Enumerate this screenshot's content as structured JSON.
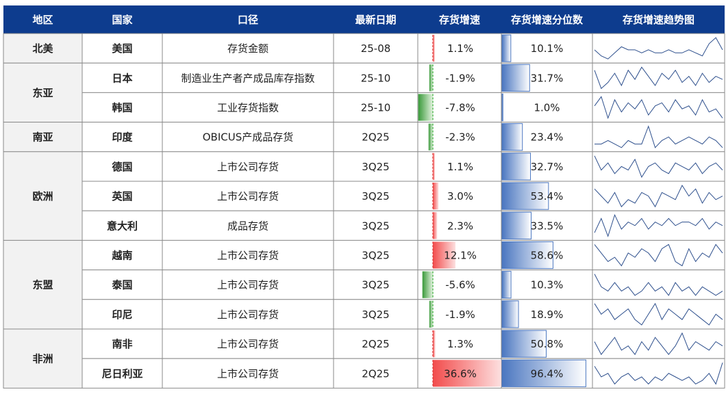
{
  "header": [
    "地区",
    "国家",
    "口径",
    "最新日期",
    "存货增速",
    "存货增速分位数",
    "存货增速趋势图"
  ],
  "regions": [
    {
      "name": "北美",
      "rows": [
        {
          "country": "美国",
          "metric": "存货金额",
          "date": "25-08",
          "growth": {
            "value": 1.1,
            "label": "1.1%"
          },
          "percentile": {
            "value": 10.1,
            "label": "10.1%"
          },
          "trend": [
            5,
            3,
            2,
            4,
            6,
            5,
            5,
            4,
            5,
            4,
            4,
            5,
            4,
            4,
            5,
            4,
            3,
            7,
            9,
            5
          ]
        }
      ]
    },
    {
      "name": "东亚",
      "rows": [
        {
          "country": "日本",
          "metric": "制造业生产者产成品库存指数",
          "date": "25-10",
          "growth": {
            "value": -1.9,
            "label": "-1.9%"
          },
          "percentile": {
            "value": 31.7,
            "label": "31.7%"
          },
          "trend": [
            8,
            2,
            4,
            7,
            3,
            8,
            5,
            9,
            6,
            3,
            7,
            5,
            8,
            4,
            6,
            3,
            7,
            4,
            6,
            5
          ]
        },
        {
          "country": "韩国",
          "metric": "工业存货指数",
          "date": "25-10",
          "growth": {
            "value": -7.8,
            "label": "-7.8%"
          },
          "percentile": {
            "value": 1.0,
            "label": "1.0%"
          },
          "trend": [
            6,
            9,
            2,
            8,
            4,
            7,
            5,
            8,
            3,
            6,
            7,
            4,
            8,
            5,
            6,
            3,
            8,
            4,
            5,
            2
          ]
        }
      ]
    },
    {
      "name": "南亚",
      "rows": [
        {
          "country": "印度",
          "metric": "OBICUS产成品存货",
          "date": "2Q25",
          "growth": {
            "value": -2.3,
            "label": "-2.3%"
          },
          "percentile": {
            "value": 23.4,
            "label": "23.4%"
          },
          "trend": [
            4,
            4,
            5,
            4,
            3,
            5,
            4,
            4,
            9,
            3,
            5,
            6,
            4,
            5,
            6,
            5,
            4,
            6,
            5,
            3
          ]
        }
      ]
    },
    {
      "name": "欧洲",
      "rows": [
        {
          "country": "德国",
          "metric": "上市公司存货",
          "date": "3Q25",
          "growth": {
            "value": 1.1,
            "label": "1.1%"
          },
          "percentile": {
            "value": 32.7,
            "label": "32.7%"
          },
          "trend": [
            8,
            4,
            6,
            3,
            5,
            4,
            7,
            2,
            5,
            6,
            4,
            3,
            6,
            5,
            4,
            6,
            3,
            5,
            6,
            4
          ]
        },
        {
          "country": "英国",
          "metric": "上市公司存货",
          "date": "3Q25",
          "growth": {
            "value": 3.0,
            "label": "3.0%"
          },
          "percentile": {
            "value": 53.4,
            "label": "53.4%"
          },
          "trend": [
            7,
            5,
            3,
            6,
            2,
            4,
            3,
            6,
            5,
            2,
            6,
            5,
            4,
            8,
            5,
            7,
            3,
            6,
            4,
            5
          ]
        },
        {
          "country": "意大利",
          "metric": "成品存货",
          "date": "3Q25",
          "growth": {
            "value": 2.3,
            "label": "2.3%"
          },
          "percentile": {
            "value": 33.5,
            "label": "33.5%"
          },
          "trend": [
            3,
            7,
            2,
            8,
            4,
            6,
            5,
            7,
            4,
            6,
            5,
            7,
            5,
            6,
            6,
            5,
            7,
            4,
            6,
            5
          ]
        }
      ]
    },
    {
      "name": "东盟",
      "rows": [
        {
          "country": "越南",
          "metric": "上市公司存货",
          "date": "3Q25",
          "growth": {
            "value": 12.1,
            "label": "12.1%"
          },
          "percentile": {
            "value": 58.6,
            "label": "58.6%"
          },
          "trend": [
            8,
            6,
            4,
            5,
            3,
            6,
            5,
            7,
            6,
            4,
            7,
            8,
            4,
            3,
            7,
            4,
            6,
            5,
            8,
            6
          ]
        },
        {
          "country": "泰国",
          "metric": "上市公司存货",
          "date": "3Q25",
          "growth": {
            "value": -5.6,
            "label": "-5.6%"
          },
          "percentile": {
            "value": 10.3,
            "label": "10.3%"
          },
          "trend": [
            8,
            5,
            4,
            6,
            4,
            5,
            3,
            4,
            6,
            4,
            5,
            3,
            6,
            4,
            5,
            3,
            5,
            4,
            3,
            4
          ]
        },
        {
          "country": "印尼",
          "metric": "上市公司存货",
          "date": "3Q25",
          "growth": {
            "value": -1.9,
            "label": "-1.9%"
          },
          "percentile": {
            "value": 18.9,
            "label": "18.9%"
          },
          "trend": [
            7,
            5,
            6,
            4,
            5,
            6,
            4,
            3,
            5,
            7,
            4,
            6,
            5,
            4,
            6,
            5,
            4,
            3,
            5,
            4
          ]
        }
      ]
    },
    {
      "name": "非洲",
      "rows": [
        {
          "country": "南非",
          "metric": "上市公司存货",
          "date": "2Q25",
          "growth": {
            "value": 1.3,
            "label": "1.3%"
          },
          "percentile": {
            "value": 50.8,
            "label": "50.8%"
          },
          "trend": [
            6,
            3,
            5,
            7,
            4,
            5,
            3,
            6,
            4,
            7,
            5,
            3,
            5,
            8,
            4,
            6,
            5,
            4,
            6,
            5
          ]
        },
        {
          "country": "尼日利亚",
          "metric": "上市公司存货",
          "date": "2Q25",
          "growth": {
            "value": 36.6,
            "label": "36.6%"
          },
          "percentile": {
            "value": 96.4,
            "label": "96.4%"
          },
          "trend": [
            8,
            5,
            6,
            3,
            5,
            6,
            4,
            5,
            3,
            5,
            4,
            6,
            5,
            4,
            5,
            3,
            4,
            6,
            3,
            9
          ]
        }
      ]
    }
  ]
}
